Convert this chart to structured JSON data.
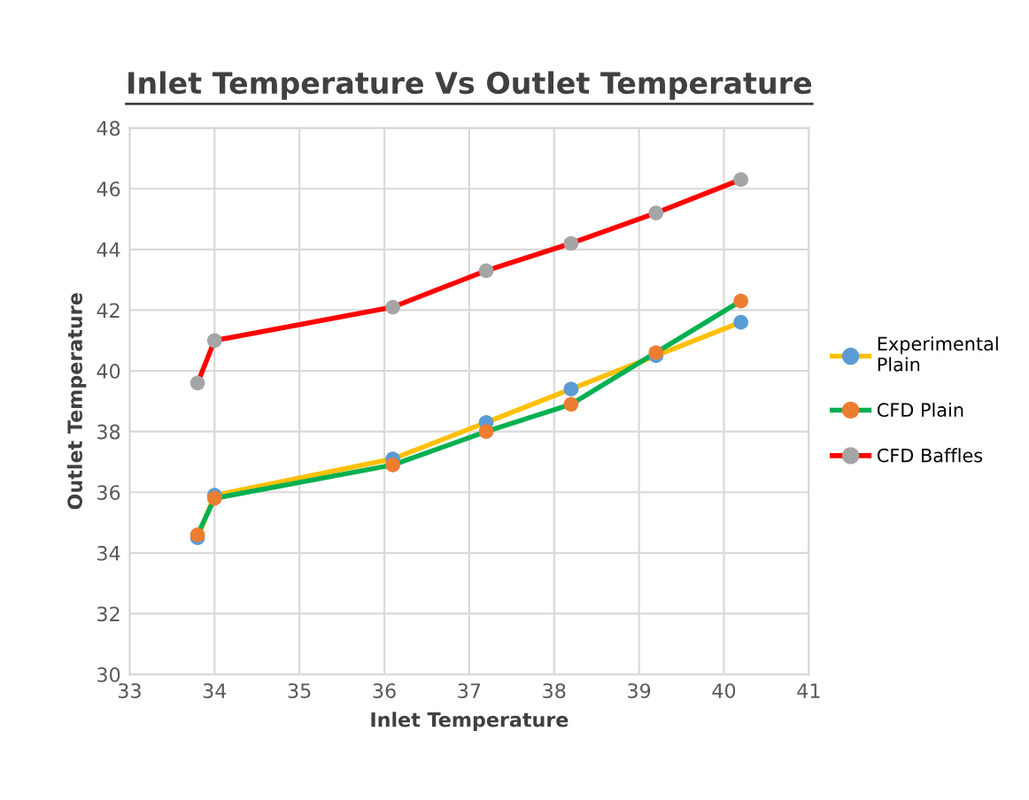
{
  "chart_data": {
    "type": "line",
    "title": "Inlet Temperature Vs Outlet Temperature",
    "xlabel": "Inlet Temperature",
    "ylabel": "Outlet Temperature",
    "x": [
      33.8,
      34,
      36.1,
      37.2,
      38.2,
      39.2,
      40.2
    ],
    "series": [
      {
        "name": "Experimental\nPlain",
        "color": "#ffc000",
        "colors": [
          "#5b9bd5",
          "#5b9bd5",
          "#5b9bd5",
          "#5b9bd5",
          "#5b9bd5",
          "#5b9bd5",
          "#5b9bd5"
        ],
        "values": [
          34.5,
          35.9,
          37.1,
          38.3,
          39.4,
          40.5,
          41.6
        ]
      },
      {
        "name": "CFD Plain",
        "color": "#00b050",
        "colors": [
          "#ed7d31",
          "#ed7d31",
          "#ed7d31",
          "#ed7d31",
          "#ed7d31",
          "#ed7d31",
          "#ed7d31"
        ],
        "values": [
          34.6,
          35.8,
          36.9,
          38.0,
          38.9,
          40.6,
          42.3
        ]
      },
      {
        "name": "CFD Baffles",
        "color": "#ff0000",
        "colors": [
          "#a5a5a5",
          "#a5a5a5",
          "#a5a5a5",
          "#a5a5a5",
          "#a5a5a5",
          "#a5a5a5",
          "#a5a5a5"
        ],
        "values": [
          39.6,
          41.0,
          42.1,
          43.3,
          44.2,
          45.2,
          46.3
        ]
      }
    ],
    "xlim": [
      33,
      41
    ],
    "xticks": [
      33,
      34,
      35,
      36,
      37,
      38,
      39,
      40,
      41
    ],
    "ylim": [
      30,
      48
    ],
    "yticks": [
      30,
      32,
      34,
      36,
      38,
      40,
      42,
      44,
      46,
      48
    ],
    "grid": true,
    "legend": "right",
    "marker": "circle",
    "line_style": "solid"
  }
}
